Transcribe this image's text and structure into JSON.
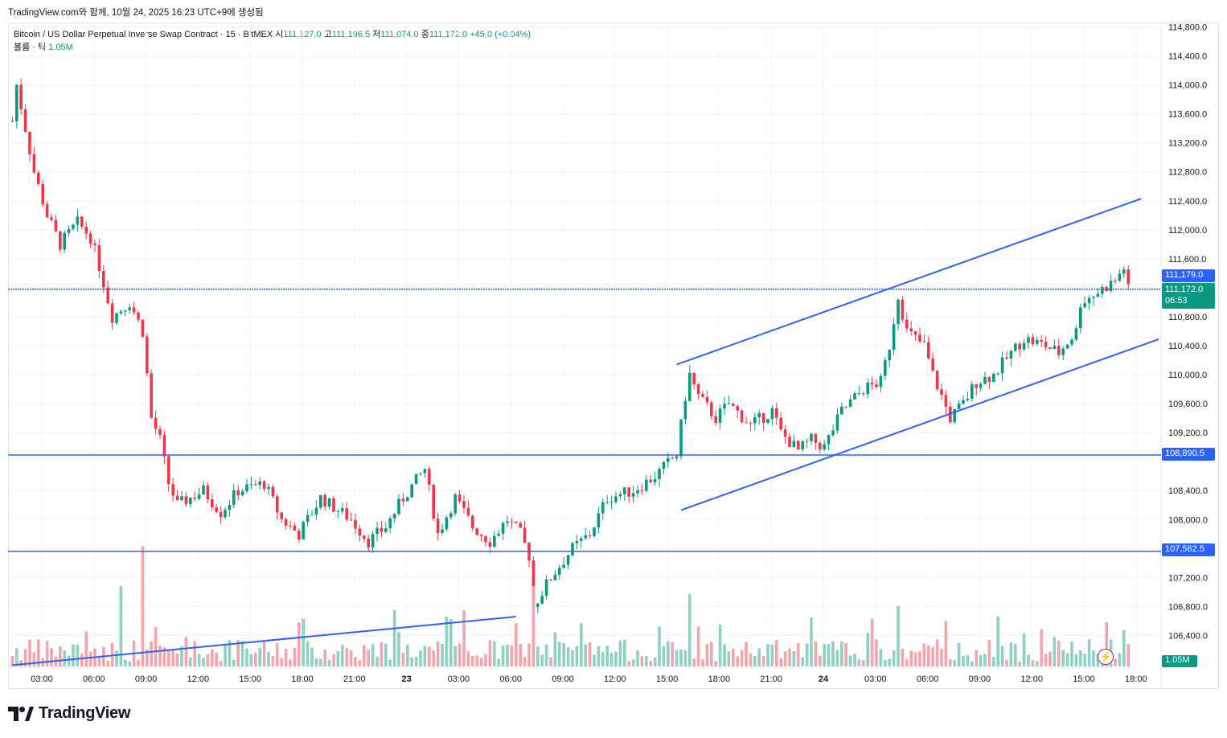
{
  "header": {
    "caption": "TradingView.com와 함께, 10월 24, 2025 16:23 UTC+9에 생성됨",
    "symbol": "Bitcoin / US Dollar Perpetual Inverse Swap Contract · 15 · BitMEX",
    "open_label": "시",
    "open": "111,127.0",
    "high_label": "고",
    "high": "111,196.5",
    "low_label": "저",
    "low": "111,074.0",
    "close_label": "종",
    "close": "111,172.0",
    "change": "+45.0 (+0.04%)",
    "volume_label": "볼륨 · 틱",
    "volume": "1.05M"
  },
  "price_tags": {
    "level_1": "111,179.0",
    "last_price": "111,172.0",
    "countdown": "06:53",
    "level_2": "108,890.5",
    "level_3": "107,562.5",
    "volume_tag": "1.05M"
  },
  "colors": {
    "up": "#089981",
    "down": "#f23645",
    "line": "#2962ff",
    "vol_up": "#8ed0c2",
    "vol_down": "#f4a5a9"
  },
  "branding": {
    "logo_text": "TradingView"
  },
  "icons": {
    "logo": "tradingview-logo-icon",
    "alert": "lightning-icon"
  },
  "chart_data": {
    "type": "candlestick",
    "y_ticks": [
      "114,800.0",
      "114,400.0",
      "114,000.0",
      "113,600.0",
      "113,200.0",
      "112,800.0",
      "112,400.0",
      "112,000.0",
      "111,600.0",
      "110,800.0",
      "110,400.0",
      "110,000.0",
      "109,600.0",
      "109,200.0",
      "108,400.0",
      "108,000.0",
      "107,200.0",
      "106,800.0",
      "106,400.0"
    ],
    "x_ticks": [
      "03:00",
      "06:00",
      "09:00",
      "12:00",
      "15:00",
      "18:00",
      "21:00",
      "23",
      "03:00",
      "06:00",
      "09:00",
      "12:00",
      "15:00",
      "18:00",
      "21:00",
      "24",
      "03:00",
      "06:00",
      "09:00",
      "12:00",
      "15:00",
      "18:00"
    ],
    "ylim": [
      105950,
      114850
    ],
    "timeframe": "15",
    "horizontal_levels": [
      111179.0,
      108890.5,
      107562.5
    ],
    "trendlines": [
      {
        "from": [
          "10/22 00:00",
          105990
        ],
        "to": [
          "10/23 05:00",
          106660
        ]
      },
      {
        "from": [
          "10/23 14:15",
          110140
        ],
        "to": [
          "10/24 17:00",
          112430
        ]
      },
      {
        "from": [
          "10/23 14:30",
          108130
        ],
        "to": [
          "10/24 18:00",
          110490
        ]
      }
    ],
    "anchors": [
      [
        "10/22 00:00",
        113500
      ],
      [
        "10/22 00:15",
        114000
      ],
      [
        "10/22 01:15",
        112800
      ],
      [
        "10/22 02:00",
        112200
      ],
      [
        "10/22 02:45",
        111800
      ],
      [
        "10/22 03:45",
        112100
      ],
      [
        "10/22 04:30",
        111900
      ],
      [
        "10/22 05:00",
        111500
      ],
      [
        "10/22 05:45",
        110800
      ],
      [
        "10/22 06:45",
        111000
      ],
      [
        "10/22 07:30",
        110600
      ],
      [
        "10/22 08:00",
        109400
      ],
      [
        "10/22 08:30",
        109100
      ],
      [
        "10/22 09:00",
        108500
      ],
      [
        "10/22 09:30",
        108200
      ],
      [
        "10/22 11:00",
        108400
      ],
      [
        "10/22 12:00",
        108100
      ],
      [
        "10/22 13:00",
        108400
      ],
      [
        "10/22 14:30",
        108500
      ],
      [
        "10/22 15:30",
        108000
      ],
      [
        "10/22 16:30",
        107800
      ],
      [
        "10/22 17:45",
        108300
      ],
      [
        "10/22 19:30",
        108000
      ],
      [
        "10/22 20:30",
        107700
      ],
      [
        "10/22 21:30",
        107900
      ],
      [
        "10/22 22:30",
        108300
      ],
      [
        "10/22 23:45",
        108700
      ],
      [
        "10/23 00:30",
        107800
      ],
      [
        "10/23 01:30",
        108300
      ],
      [
        "10/23 02:30",
        107900
      ],
      [
        "10/23 03:30",
        107700
      ],
      [
        "10/23 04:30",
        108000
      ],
      [
        "10/23 05:15",
        107800
      ],
      [
        "10/23 05:45",
        107500
      ],
      [
        "10/23 06:00",
        106800
      ],
      [
        "10/23 07:00",
        107200
      ],
      [
        "10/23 08:15",
        107600
      ],
      [
        "10/23 09:15",
        107800
      ],
      [
        "10/23 10:15",
        108300
      ],
      [
        "10/23 11:45",
        108400
      ],
      [
        "10/23 13:00",
        108600
      ],
      [
        "10/23 14:15",
        108900
      ],
      [
        "10/23 14:45",
        109700
      ],
      [
        "10/23 15:00",
        110000
      ],
      [
        "10/23 15:30",
        109700
      ],
      [
        "10/23 16:30",
        109400
      ],
      [
        "10/23 17:15",
        109600
      ],
      [
        "10/23 18:30",
        109300
      ],
      [
        "10/23 19:45",
        109500
      ],
      [
        "10/23 20:15",
        109200
      ],
      [
        "10/23 21:15",
        108950
      ],
      [
        "10/23 22:00",
        109100
      ],
      [
        "10/23 22:45",
        109000
      ],
      [
        "10/23 23:45",
        109500
      ],
      [
        "10/24 01:00",
        109800
      ],
      [
        "10/24 02:00",
        109900
      ],
      [
        "10/24 02:30",
        110400
      ],
      [
        "10/24 03:00",
        111100
      ],
      [
        "10/24 03:30",
        110600
      ],
      [
        "10/24 04:30",
        110400
      ],
      [
        "10/24 05:00",
        110000
      ],
      [
        "10/24 05:30",
        109700
      ],
      [
        "10/24 06:00",
        109400
      ],
      [
        "10/24 06:45",
        109600
      ],
      [
        "10/24 07:30",
        109900
      ],
      [
        "10/24 08:30",
        110000
      ],
      [
        "10/24 09:30",
        110300
      ],
      [
        "10/24 10:15",
        110500
      ],
      [
        "10/24 11:30",
        110400
      ],
      [
        "10/24 12:15",
        110300
      ],
      [
        "10/24 13:15",
        110600
      ],
      [
        "10/24 13:30",
        111000
      ],
      [
        "10/24 14:15",
        111100
      ],
      [
        "10/24 15:30",
        111300
      ],
      [
        "10/24 16:00",
        111480
      ],
      [
        "10/24 16:15",
        111172
      ]
    ],
    "volume_peaks": [
      [
        "10/22 07:30",
        150
      ],
      [
        "10/22 06:15",
        100
      ],
      [
        "10/23 06:00",
        100
      ],
      [
        "10/23 15:00",
        90
      ],
      [
        "10/24 03:00",
        75
      ],
      [
        "10/24 15:00",
        55
      ],
      [
        "10/22 22:00",
        70
      ],
      [
        "10/23 02:00",
        70
      ]
    ]
  }
}
